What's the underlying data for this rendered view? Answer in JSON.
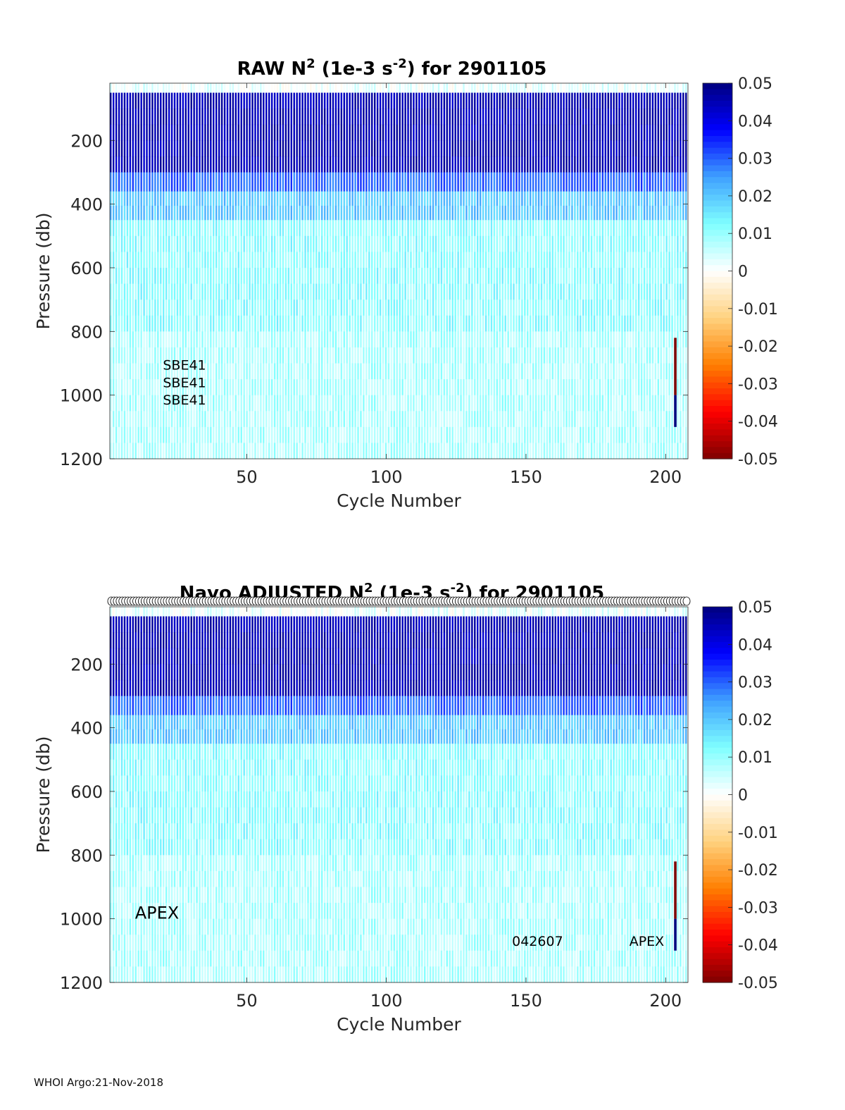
{
  "footer": "WHOI Argo:21-Nov-2018",
  "colors": {
    "colormap": [
      "#7f0000",
      "#ff0000",
      "#ff7f00",
      "#ffd27f",
      "#ffffff",
      "#7fffff",
      "#3fa0ff",
      "#0000ff",
      "#00007f"
    ]
  },
  "chart_data": [
    {
      "type": "heatmap",
      "title_main": "RAW N",
      "title_sup": "2",
      "title_mid": " (1e-3 s",
      "title_sup2": "-2",
      "title_end": ") for 2901105",
      "xlabel": "Cycle Number",
      "ylabel": "Pressure (db)",
      "xlim": [
        1,
        208
      ],
      "ylim": [
        20,
        1200
      ],
      "y_reversed": true,
      "xticks": [
        50,
        100,
        150,
        200
      ],
      "yticks": [
        200,
        400,
        600,
        800,
        1000,
        1200
      ],
      "colorbar": {
        "clim": [
          -0.05,
          0.05
        ],
        "ticks": [
          "0.05",
          "0.04",
          "0.03",
          "0.02",
          "0.01",
          "0",
          "-0.01",
          "-0.02",
          "-0.03",
          "-0.04",
          "-0.05"
        ]
      },
      "annotations": [
        {
          "text": "SBE41",
          "x": 20,
          "y": 920
        },
        {
          "text": "SBE41",
          "x": 20,
          "y": 975
        },
        {
          "text": "SBE41",
          "x": 20,
          "y": 1030
        }
      ],
      "layers": [
        {
          "p0": 20,
          "p1": 50,
          "value": 0.002
        },
        {
          "p0": 50,
          "p1": 300,
          "value": 0.045
        },
        {
          "p0": 300,
          "p1": 360,
          "value": 0.03
        },
        {
          "p0": 360,
          "p1": 450,
          "value": 0.02
        },
        {
          "p0": 450,
          "p1": 800,
          "value": 0.011
        },
        {
          "p0": 800,
          "p1": 1200,
          "value": 0.008
        }
      ],
      "special_columns": [
        {
          "x": 204,
          "p0": 820,
          "p1": 1000,
          "value": -0.05
        },
        {
          "x": 204,
          "p0": 1000,
          "p1": 1100,
          "value": 0.05
        }
      ]
    },
    {
      "type": "heatmap",
      "title_main": "Navo  ADJUSTED N",
      "title_sup": "2",
      "title_mid": " (1e-3 s",
      "title_sup2": "-2",
      "title_end": ") for 2901105",
      "xlabel": "Cycle Number",
      "ylabel": "Pressure (db)",
      "xlim": [
        1,
        208
      ],
      "ylim": [
        20,
        1200
      ],
      "y_reversed": true,
      "xticks": [
        50,
        100,
        150,
        200
      ],
      "yticks": [
        200,
        400,
        600,
        800,
        1000,
        1200
      ],
      "colorbar": {
        "clim": [
          -0.05,
          0.05
        ],
        "ticks": [
          "0.05",
          "0.04",
          "0.03",
          "0.02",
          "0.01",
          "0",
          "-0.01",
          "-0.02",
          "-0.03",
          "-0.04",
          "-0.05"
        ]
      },
      "annotations": [
        {
          "text": "APEX",
          "x": 10,
          "y": 1000,
          "size": "large"
        },
        {
          "text": "042607",
          "x": 145,
          "y": 1085
        },
        {
          "text": "APEX",
          "x": 187,
          "y": 1085
        }
      ],
      "markers": {
        "shape": "circle",
        "y": 0,
        "x_start": 1,
        "x_end": 208
      },
      "layers": [
        {
          "p0": 20,
          "p1": 50,
          "value": 0.002
        },
        {
          "p0": 50,
          "p1": 300,
          "value": 0.045
        },
        {
          "p0": 300,
          "p1": 360,
          "value": 0.03
        },
        {
          "p0": 360,
          "p1": 450,
          "value": 0.02
        },
        {
          "p0": 450,
          "p1": 800,
          "value": 0.011
        },
        {
          "p0": 800,
          "p1": 1200,
          "value": 0.008
        }
      ],
      "special_columns": [
        {
          "x": 204,
          "p0": 820,
          "p1": 1000,
          "value": -0.05
        },
        {
          "x": 204,
          "p0": 1000,
          "p1": 1100,
          "value": 0.05
        }
      ]
    }
  ]
}
